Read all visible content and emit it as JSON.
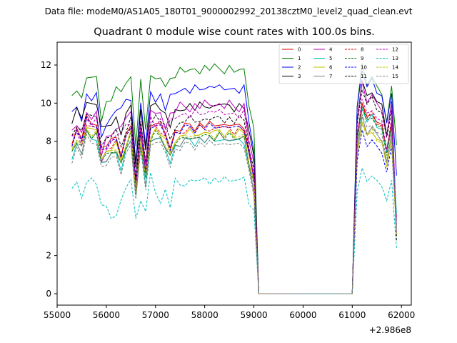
{
  "suptitle": "Data file: modeM0/AS1A05_180T01_9000002992_20138cztM0_level2_quad_clean.evt",
  "chart_data": {
    "type": "line",
    "title": "Quadrant 0 module wise count rates with 100.0s bins.",
    "xlabel": "",
    "ylabel": "",
    "x_offset_label": "+2.986e8",
    "xlim": [
      55000,
      62200
    ],
    "ylim": [
      -0.6,
      13.2
    ],
    "xticks": [
      55000,
      56000,
      57000,
      58000,
      59000,
      60000,
      61000,
      62000
    ],
    "xtick_labels": [
      "55000",
      "56000",
      "57000",
      "58000",
      "59000",
      "60000",
      "61000",
      "62000"
    ],
    "yticks": [
      0,
      2,
      4,
      6,
      8,
      10,
      12
    ],
    "ytick_labels": [
      "0",
      "2",
      "4",
      "6",
      "8",
      "10",
      "12"
    ],
    "legend_loc": "top-right",
    "segments": [
      {
        "x_start": 55300,
        "x_end": 59000,
        "step": 100
      },
      {
        "x_start": 59100,
        "x_end": 61000,
        "step": 100
      },
      {
        "x_start": 61100,
        "x_end": 61900,
        "step": 100
      }
    ],
    "series": [
      {
        "name": "0",
        "color": "#e00000",
        "dash": "solid",
        "base": 8.0,
        "shape": "A",
        "end": 10.0,
        "final": 4.0
      },
      {
        "name": "1",
        "color": "#008000",
        "dash": "solid",
        "base": 10.4,
        "shape": "B",
        "end": 12.0,
        "final": 7.8
      },
      {
        "name": "2",
        "color": "#0000ff",
        "dash": "solid",
        "base": 9.4,
        "shape": "B",
        "end": 11.8,
        "final": 6.2
      },
      {
        "name": "3",
        "color": "#000000",
        "dash": "solid",
        "base": 9.0,
        "shape": "A",
        "end": 11.2,
        "final": 3.0
      },
      {
        "name": "4",
        "color": "#bf00bf",
        "dash": "solid",
        "base": 8.5,
        "shape": "B",
        "end": 11.0,
        "final": 3.8
      },
      {
        "name": "5",
        "color": "#00bfbf",
        "dash": "solid",
        "base": 7.2,
        "shape": "A",
        "end": 9.8,
        "final": 4.2
      },
      {
        "name": "6",
        "color": "#bfbf00",
        "dash": "solid",
        "base": 7.6,
        "shape": "A",
        "end": 9.0,
        "final": 3.5
      },
      {
        "name": "7",
        "color": "#808080",
        "dash": "solid",
        "base": 7.3,
        "shape": "A",
        "end": 9.2,
        "final": 3.6
      },
      {
        "name": "8",
        "color": "#e00000",
        "dash": "dashed",
        "base": 7.8,
        "shape": "A",
        "end": 10.0,
        "final": 3.2
      },
      {
        "name": "9",
        "color": "#008000",
        "dash": "dashed",
        "base": 7.4,
        "shape": "A",
        "end": 9.8,
        "final": 3.0
      },
      {
        "name": "10",
        "color": "#0000ff",
        "dash": "dashed",
        "base": 7.9,
        "shape": "A",
        "end": 8.5,
        "final": 3.3
      },
      {
        "name": "11",
        "color": "#000000",
        "dash": "dashed",
        "base": 8.3,
        "shape": "A",
        "end": 10.8,
        "final": 2.8
      },
      {
        "name": "12",
        "color": "#bf00bf",
        "dash": "dashed",
        "base": 8.1,
        "shape": "B",
        "end": 10.2,
        "final": 3.1
      },
      {
        "name": "13",
        "color": "#00bfbf",
        "dash": "dashed",
        "base": 5.6,
        "shape": "C",
        "end": 6.5,
        "final": 2.4
      },
      {
        "name": "14",
        "color": "#bfbf00",
        "dash": "dashed",
        "base": 7.5,
        "shape": "A",
        "end": 9.0,
        "final": 3.0
      },
      {
        "name": "15",
        "color": "#808080",
        "dash": "dashed",
        "base": 7.0,
        "shape": "A",
        "end": 9.4,
        "final": 3.2
      }
    ],
    "shape_profiles": {
      "A": [
        0,
        0.6,
        0.2,
        1.2,
        0.9,
        1.0,
        -0.4,
        -0.2,
        0.0,
        0.2,
        -0.6,
        0.3,
        0.9,
        -2.2,
        0.6,
        -1.4,
        0.7,
        1.0,
        0.8,
        0.4,
        -0.2,
        0.5,
        0.6,
        0.8,
        0.9,
        0.7,
        0.9,
        0.8,
        0.9,
        0.8,
        1.0,
        0.8,
        0.9,
        0.7,
        0.9,
        0.8,
        -0.6,
        -1.8
      ],
      "B": [
        0,
        0.4,
        -0.2,
        1.0,
        0.8,
        1.0,
        -1.2,
        -0.4,
        -0.2,
        0.3,
        0.2,
        0.8,
        0.9,
        -2.6,
        0.7,
        -1.8,
        1.2,
        0.8,
        1.0,
        0.3,
        0.9,
        1.1,
        1.4,
        1.3,
        1.2,
        1.4,
        1.3,
        1.5,
        1.4,
        1.5,
        1.4,
        1.3,
        1.5,
        1.3,
        1.2,
        1.4,
        -0.4,
        -1.8
      ],
      "C": [
        0,
        0.1,
        -0.6,
        0.4,
        0.4,
        0.2,
        -1.1,
        -1.0,
        -1.5,
        -1.6,
        -0.6,
        -0.2,
        0.4,
        -1.5,
        -0.8,
        -1.2,
        0.6,
        -0.3,
        -0.7,
        -0.2,
        -1.0,
        0.3,
        0.1,
        0.2,
        0.3,
        0.4,
        0.2,
        0.5,
        0.3,
        0.4,
        0.3,
        0.4,
        0.3,
        0.5,
        0.3,
        0.6,
        -1.1,
        -1.2
      ]
    },
    "end_profile": [
      0.82,
      1.0,
      0.92,
      0.95,
      0.9,
      0.88,
      0.75
    ]
  }
}
